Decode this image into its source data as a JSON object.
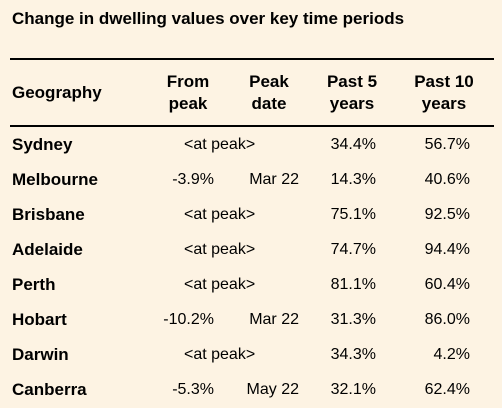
{
  "title": "Change in dwelling values over key time periods",
  "columns": {
    "geography": "Geography",
    "from_peak": [
      "From",
      "peak"
    ],
    "peak_date": [
      "Peak",
      "date"
    ],
    "past_5": [
      "Past 5",
      "years"
    ],
    "past_10": [
      "Past 10",
      "years"
    ]
  },
  "rows": [
    {
      "geography": "Sydney",
      "at_peak": "<at peak>",
      "from_peak": "",
      "peak_date": "",
      "past_5": "34.4%",
      "past_10": "56.7%"
    },
    {
      "geography": "Melbourne",
      "at_peak": "",
      "from_peak": "-3.9%",
      "peak_date": "Mar 22",
      "past_5": "14.3%",
      "past_10": "40.6%"
    },
    {
      "geography": "Brisbane",
      "at_peak": "<at peak>",
      "from_peak": "",
      "peak_date": "",
      "past_5": "75.1%",
      "past_10": "92.5%"
    },
    {
      "geography": "Adelaide",
      "at_peak": "<at peak>",
      "from_peak": "",
      "peak_date": "",
      "past_5": "74.7%",
      "past_10": "94.4%"
    },
    {
      "geography": "Perth",
      "at_peak": "<at peak>",
      "from_peak": "",
      "peak_date": "",
      "past_5": "81.1%",
      "past_10": "60.4%"
    },
    {
      "geography": "Hobart",
      "at_peak": "",
      "from_peak": "-10.2%",
      "peak_date": "Mar 22",
      "past_5": "31.3%",
      "past_10": "86.0%"
    },
    {
      "geography": "Darwin",
      "at_peak": "<at peak>",
      "from_peak": "",
      "peak_date": "",
      "past_5": "34.3%",
      "past_10": "4.2%"
    },
    {
      "geography": "Canberra",
      "at_peak": "",
      "from_peak": "-5.3%",
      "peak_date": "May 22",
      "past_5": "32.1%",
      "past_10": "62.4%"
    }
  ]
}
